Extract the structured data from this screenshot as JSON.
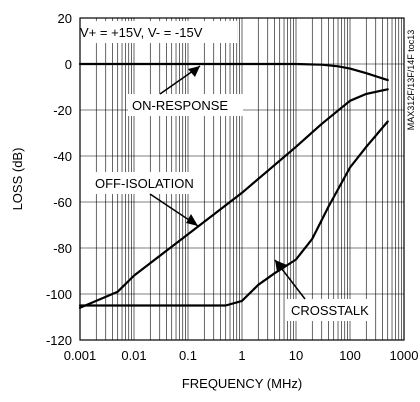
{
  "chart_data": {
    "type": "line",
    "title": "",
    "xlabel": "FREQUENCY (MHz)",
    "ylabel": "LOSS (dB)",
    "xscale": "log",
    "xlim": [
      0.001,
      1000
    ],
    "ylim": [
      -120,
      20
    ],
    "grid": true,
    "x_tick_labels": [
      "0.001",
      "0.01",
      "0.1",
      "1",
      "10",
      "100",
      "1000"
    ],
    "y_tick_labels": [
      "20",
      "0",
      "-20",
      "-40",
      "-60",
      "-80",
      "-100",
      "-120"
    ],
    "series": [
      {
        "name": "ON-RESPONSE",
        "x": [
          0.001,
          1,
          10,
          30,
          60,
          100,
          200,
          500
        ],
        "y": [
          0,
          0,
          0,
          -0.3,
          -1,
          -2,
          -4,
          -7
        ]
      },
      {
        "name": "OFF-ISOLATION",
        "x": [
          0.001,
          0.005,
          0.01,
          0.1,
          1,
          10,
          30,
          100,
          200,
          500
        ],
        "y": [
          -106,
          -99,
          -92,
          -74,
          -56,
          -36,
          -26,
          -16,
          -13,
          -11
        ]
      },
      {
        "name": "CROSSTALK",
        "x": [
          0.001,
          0.1,
          0.5,
          1,
          2,
          4,
          10,
          20,
          40,
          100,
          200,
          500
        ],
        "y": [
          -105,
          -105,
          -105,
          -103,
          -96,
          -91,
          -85,
          -76,
          -62,
          -45,
          -36,
          -25
        ]
      }
    ],
    "annotations": {
      "condition": "V+ = +15V, V- = -15V",
      "on_response": "ON-RESPONSE",
      "off_isolation": "OFF-ISOLATION",
      "crosstalk": "CROSSTALK"
    },
    "side_text": "MAX312F/13F/14F toc13"
  }
}
